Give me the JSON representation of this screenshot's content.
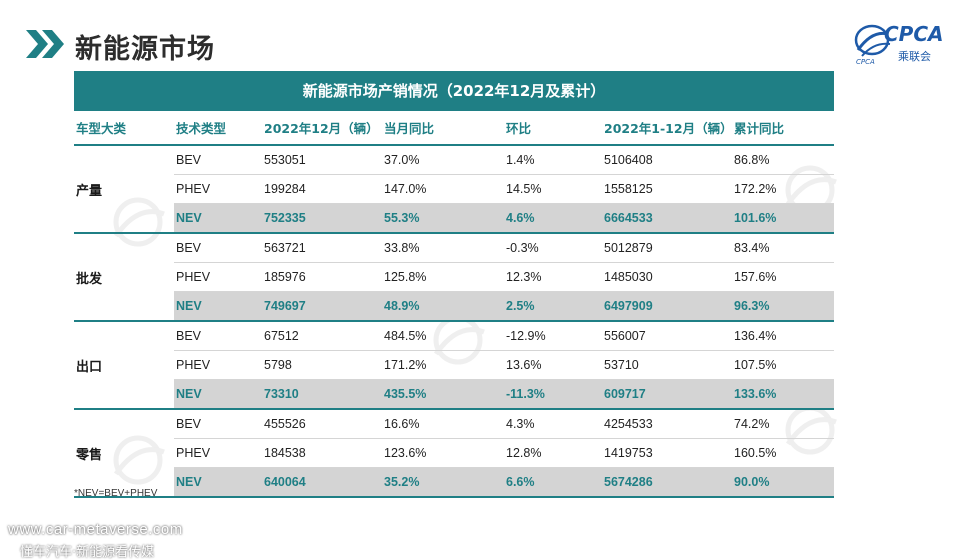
{
  "header": {
    "title": "新能源市场",
    "logo_text": "CPCA",
    "logo_sub": "乘联会"
  },
  "table": {
    "title": "新能源市场产销情况（2022年12月及累计）",
    "columns": [
      "车型大类",
      "技术类型",
      "2022年12月（辆）",
      "当月同比",
      "环比",
      "2022年1-12月（辆）",
      "累计同比"
    ],
    "groups": [
      {
        "category": "产量",
        "rows": [
          {
            "type": "BEV",
            "month": "553051",
            "yoy": "37.0%",
            "mom": "1.4%",
            "ytd": "5106408",
            "ytd_yoy": "86.8%"
          },
          {
            "type": "PHEV",
            "month": "199284",
            "yoy": "147.0%",
            "mom": "14.5%",
            "ytd": "1558125",
            "ytd_yoy": "172.2%"
          },
          {
            "type": "NEV",
            "month": "752335",
            "yoy": "55.3%",
            "mom": "4.6%",
            "ytd": "6664533",
            "ytd_yoy": "101.6%"
          }
        ]
      },
      {
        "category": "批发",
        "rows": [
          {
            "type": "BEV",
            "month": "563721",
            "yoy": "33.8%",
            "mom": "-0.3%",
            "ytd": "5012879",
            "ytd_yoy": "83.4%"
          },
          {
            "type": "PHEV",
            "month": "185976",
            "yoy": "125.8%",
            "mom": "12.3%",
            "ytd": "1485030",
            "ytd_yoy": "157.6%"
          },
          {
            "type": "NEV",
            "month": "749697",
            "yoy": "48.9%",
            "mom": "2.5%",
            "ytd": "6497909",
            "ytd_yoy": "96.3%"
          }
        ]
      },
      {
        "category": "出口",
        "rows": [
          {
            "type": "BEV",
            "month": "67512",
            "yoy": "484.5%",
            "mom": "-12.9%",
            "ytd": "556007",
            "ytd_yoy": "136.4%"
          },
          {
            "type": "PHEV",
            "month": "5798",
            "yoy": "171.2%",
            "mom": "13.6%",
            "ytd": "53710",
            "ytd_yoy": "107.5%"
          },
          {
            "type": "NEV",
            "month": "73310",
            "yoy": "435.5%",
            "mom": "-11.3%",
            "ytd": "609717",
            "ytd_yoy": "133.6%"
          }
        ]
      },
      {
        "category": "零售",
        "rows": [
          {
            "type": "BEV",
            "month": "455526",
            "yoy": "16.6%",
            "mom": "4.3%",
            "ytd": "4254533",
            "ytd_yoy": "74.2%"
          },
          {
            "type": "PHEV",
            "month": "184538",
            "yoy": "123.6%",
            "mom": "12.8%",
            "ytd": "1419753",
            "ytd_yoy": "160.5%"
          },
          {
            "type": "NEV",
            "month": "640064",
            "yoy": "35.2%",
            "mom": "6.6%",
            "ytd": "5674286",
            "ytd_yoy": "90.0%"
          }
        ]
      }
    ]
  },
  "footnote": "*NEV=BEV+PHEV",
  "watermark": {
    "url": "www.car-metaverse.com",
    "text": "懂车汽车·新能源看传媒"
  },
  "colors": {
    "accent": "#1f7f85",
    "nev_row_bg": "#d4d4d4",
    "logo_blue": "#1e5aa8"
  }
}
